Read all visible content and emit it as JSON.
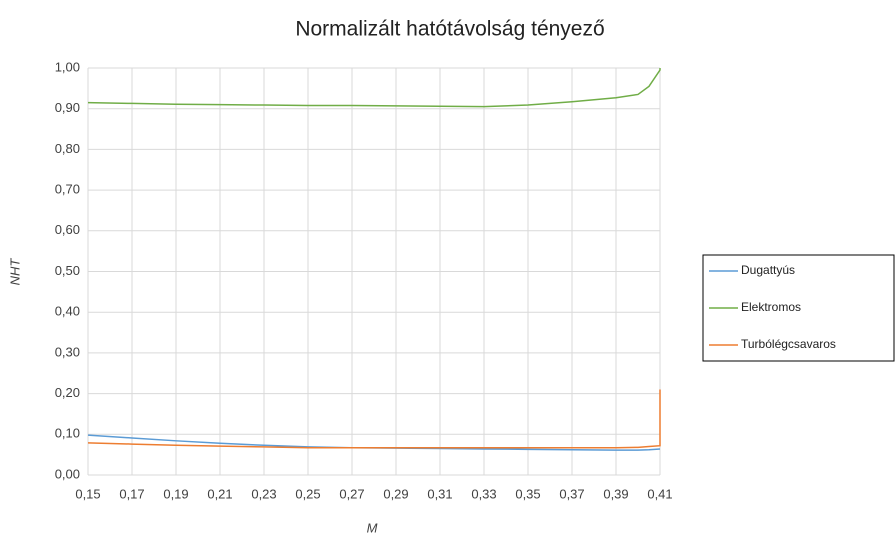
{
  "chart_data": {
    "type": "line",
    "title": "Normalizált hatótávolság tényező",
    "x_label": "M",
    "y_label": "NHT",
    "x": [
      0.15,
      0.17,
      0.19,
      0.21,
      0.23,
      0.25,
      0.27,
      0.29,
      0.31,
      0.33,
      0.35,
      0.37,
      0.39,
      0.4,
      0.405,
      0.41,
      0.41
    ],
    "series": [
      {
        "name": "Dugattyús",
        "color": "#5b9bd5",
        "values": [
          0.098,
          0.091,
          0.084,
          0.078,
          0.073,
          0.069,
          0.067,
          0.066,
          0.065,
          0.064,
          0.063,
          0.062,
          0.061,
          0.061,
          0.062,
          0.064,
          0.064
        ]
      },
      {
        "name": "Elektromos",
        "color": "#70ad47",
        "values": [
          0.915,
          0.913,
          0.911,
          0.91,
          0.909,
          0.908,
          0.908,
          0.907,
          0.906,
          0.905,
          0.909,
          0.917,
          0.927,
          0.935,
          0.955,
          0.995,
          1.0
        ]
      },
      {
        "name": "Turbólégcsavaros",
        "color": "#ed7d31",
        "values": [
          0.079,
          0.076,
          0.073,
          0.071,
          0.069,
          0.067,
          0.067,
          0.067,
          0.067,
          0.067,
          0.067,
          0.067,
          0.067,
          0.068,
          0.07,
          0.072,
          0.21
        ]
      }
    ],
    "xlim": [
      0.15,
      0.41
    ],
    "ylim": [
      0,
      1
    ],
    "xticks": [
      {
        "value": 0.15,
        "label": "0,15"
      },
      {
        "value": 0.17,
        "label": "0,17"
      },
      {
        "value": 0.19,
        "label": "0,19"
      },
      {
        "value": 0.21,
        "label": "0,21"
      },
      {
        "value": 0.23,
        "label": "0,23"
      },
      {
        "value": 0.25,
        "label": "0,25"
      },
      {
        "value": 0.27,
        "label": "0,27"
      },
      {
        "value": 0.29,
        "label": "0,29"
      },
      {
        "value": 0.31,
        "label": "0,31"
      },
      {
        "value": 0.33,
        "label": "0,33"
      },
      {
        "value": 0.35,
        "label": "0,35"
      },
      {
        "value": 0.37,
        "label": "0,37"
      },
      {
        "value": 0.39,
        "label": "0,39"
      },
      {
        "value": 0.41,
        "label": "0,41"
      }
    ],
    "yticks": [
      {
        "value": 0,
        "label": "0,00"
      },
      {
        "value": 0.1,
        "label": "0,10"
      },
      {
        "value": 0.2,
        "label": "0,20"
      },
      {
        "value": 0.3,
        "label": "0,30"
      },
      {
        "value": 0.4,
        "label": "0,40"
      },
      {
        "value": 0.5,
        "label": "0,50"
      },
      {
        "value": 0.6,
        "label": "0,60"
      },
      {
        "value": 0.7,
        "label": "0,70"
      },
      {
        "value": 0.8,
        "label": "0,80"
      },
      {
        "value": 0.9,
        "label": "0,90"
      },
      {
        "value": 1,
        "label": "1,00"
      }
    ],
    "grid": true,
    "legend": "right"
  }
}
